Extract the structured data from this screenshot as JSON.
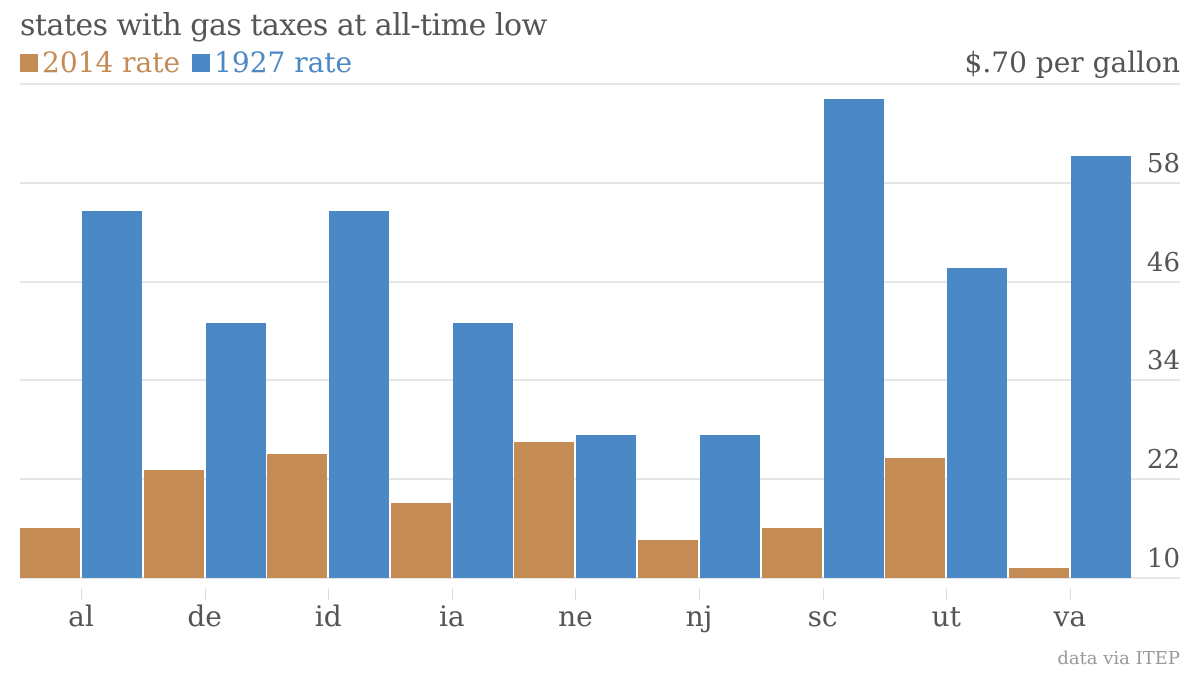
{
  "chart_data": {
    "type": "bar",
    "title": "states with gas taxes at all-time low",
    "categories": [
      "al",
      "de",
      "id",
      "ia",
      "ne",
      "nj",
      "sc",
      "ut",
      "va"
    ],
    "series": [
      {
        "name": "2014 rate",
        "color": "#c48c54",
        "values": [
          16.1,
          23.1,
          25.1,
          19.1,
          26.5,
          14.6,
          16.1,
          24.6,
          11.2
        ]
      },
      {
        "name": "1927 rate",
        "color": "#4a89c5",
        "values": [
          54.6,
          41.0,
          54.6,
          41.0,
          27.4,
          27.4,
          68.2,
          47.7,
          61.3
        ]
      }
    ],
    "ylabel": "$.70 per gallon",
    "yticks": [
      10,
      22,
      34,
      46,
      58
    ],
    "ylim": [
      10,
      70
    ],
    "grid": true,
    "legend_position": "top-left",
    "source": "data via ITEP"
  },
  "header": {
    "title": "states with gas taxes at all-time low",
    "legend": [
      {
        "label": "2014 rate",
        "color": "#c48c54"
      },
      {
        "label": "1927 rate",
        "color": "#4a89c5"
      }
    ],
    "unit_label": "$.70 per gallon"
  },
  "footer": {
    "source": "data via ITEP"
  }
}
